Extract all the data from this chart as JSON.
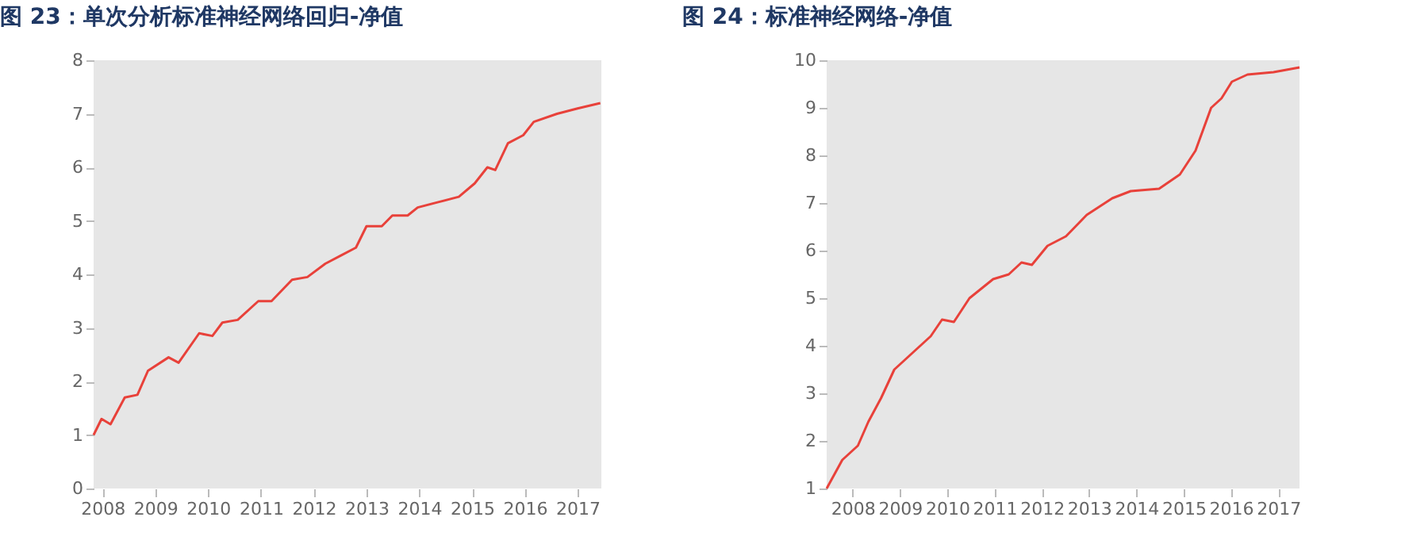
{
  "chart_data": [
    {
      "type": "line",
      "title": "图 23：单次分析标准神经网络回归-净值",
      "xlim": [
        2007.83,
        2017.45
      ],
      "xticks": [
        2008,
        2009,
        2010,
        2011,
        2012,
        2013,
        2014,
        2015,
        2016,
        2017
      ],
      "ylim": [
        0,
        8
      ],
      "yticks": [
        0,
        1,
        2,
        3,
        4,
        5,
        6,
        7,
        8
      ],
      "grid": false,
      "x": [
        2007.83,
        2007.98,
        2008.15,
        2008.42,
        2008.66,
        2008.86,
        2009.25,
        2009.44,
        2009.83,
        2010.08,
        2010.27,
        2010.56,
        2010.95,
        2011.2,
        2011.59,
        2011.88,
        2012.22,
        2012.51,
        2012.8,
        2013.0,
        2013.29,
        2013.49,
        2013.78,
        2013.97,
        2014.36,
        2014.75,
        2015.05,
        2015.29,
        2015.44,
        2015.68,
        2015.97,
        2016.17,
        2016.61,
        2017.0,
        2017.43
      ],
      "series": [
        {
          "color": "#e8413a",
          "values": [
            1.0,
            1.3,
            1.2,
            1.7,
            1.75,
            2.2,
            2.45,
            2.35,
            2.9,
            2.85,
            3.1,
            3.15,
            3.5,
            3.5,
            3.9,
            3.95,
            4.2,
            4.35,
            4.5,
            4.9,
            4.9,
            5.1,
            5.1,
            5.25,
            5.35,
            5.45,
            5.7,
            6.0,
            5.95,
            6.45,
            6.6,
            6.85,
            7.0,
            7.1,
            7.2
          ]
        }
      ]
    },
    {
      "type": "line",
      "title": "图 24：标准神经网络-净值",
      "xlim": [
        2007.45,
        2017.45
      ],
      "xticks": [
        2008,
        2009,
        2010,
        2011,
        2012,
        2013,
        2014,
        2015,
        2016,
        2017
      ],
      "ylim": [
        1,
        10
      ],
      "yticks": [
        1,
        2,
        3,
        4,
        5,
        6,
        7,
        8,
        9,
        10
      ],
      "grid": false,
      "x": [
        2007.45,
        2007.78,
        2008.11,
        2008.33,
        2008.6,
        2008.88,
        2009.21,
        2009.65,
        2009.89,
        2010.14,
        2010.47,
        2010.97,
        2011.3,
        2011.57,
        2011.79,
        2012.12,
        2012.51,
        2012.95,
        2013.49,
        2013.88,
        2014.48,
        2014.92,
        2015.25,
        2015.58,
        2015.8,
        2016.02,
        2016.35,
        2016.9,
        2017.45
      ],
      "series": [
        {
          "color": "#e8413a",
          "values": [
            1.0,
            1.6,
            1.9,
            2.4,
            2.9,
            3.5,
            3.8,
            4.2,
            4.55,
            4.5,
            5.0,
            5.4,
            5.5,
            5.75,
            5.7,
            6.1,
            6.3,
            6.75,
            7.1,
            7.25,
            7.3,
            7.6,
            8.1,
            9.0,
            9.2,
            9.55,
            9.7,
            9.75,
            9.85
          ]
        }
      ]
    }
  ]
}
